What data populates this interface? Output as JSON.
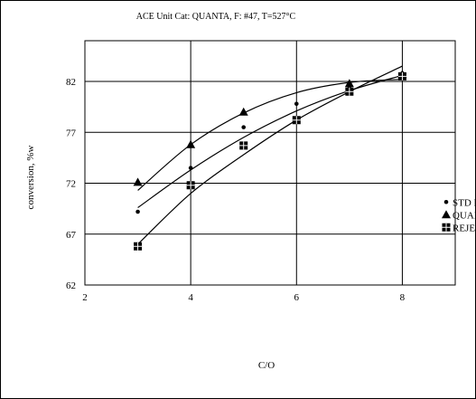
{
  "chart_data": {
    "type": "scatter",
    "title": "ACE Unit Cat: QUANTA, F: #47, T=527°C",
    "xlabel": "C/O",
    "ylabel": "conversion, %w",
    "xlim": [
      2,
      9
    ],
    "ylim": [
      62,
      86
    ],
    "x_ticks": [
      "2",
      "4",
      "6",
      "8"
    ],
    "y_ticks": [
      "62",
      "67",
      "72",
      "77",
      "82"
    ],
    "grid": "vertical and horizontal major gridlines",
    "legend_position": "right",
    "series": [
      {
        "name": "STD FCC",
        "marker": "circle",
        "x": [
          3,
          4,
          5,
          6,
          7,
          8
        ],
        "y": [
          69.2,
          73.5,
          77.5,
          79.8,
          81.5,
          82.8
        ],
        "fit": [
          3,
          69.6,
          4,
          73.3,
          5,
          76.5,
          6,
          79.1,
          7,
          81.1,
          8,
          82.6
        ]
      },
      {
        "name": "QUANTA",
        "marker": "triangle",
        "x": [
          3,
          4,
          5,
          7,
          8
        ],
        "y": [
          72.1,
          75.8,
          79.0,
          81.8,
          82.7
        ],
        "fit": [
          3,
          71.3,
          4,
          75.8,
          5,
          78.9,
          6,
          80.9,
          7,
          81.9,
          8,
          82.2
        ]
      },
      {
        "name": "REJECT",
        "marker": "square",
        "x": [
          3,
          4,
          5,
          6,
          7,
          8
        ],
        "y": [
          65.8,
          71.8,
          75.7,
          78.2,
          81.0,
          82.5
        ],
        "fit": [
          3,
          66.0,
          4,
          71.0,
          5,
          74.8,
          6,
          78.2,
          7,
          81.0,
          8,
          83.5
        ]
      }
    ]
  }
}
